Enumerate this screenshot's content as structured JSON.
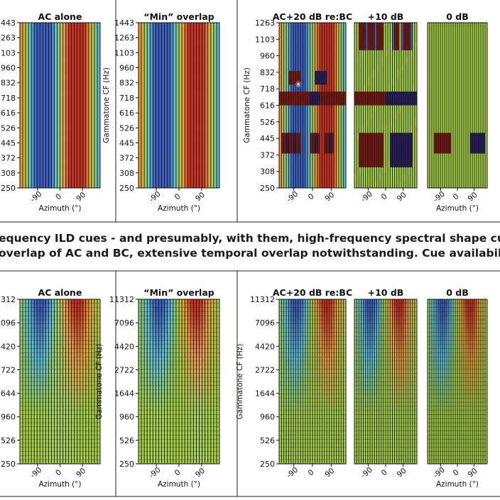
{
  "caption": {
    "line1": "equency ILD cues - and presumably, with them, high-frequency spectral shape cues - are",
    "line2": "overlap of AC and BC, extensive temporal overlap notwithstanding. Cue availability the"
  },
  "colors": {
    "blue": "#3f5fbf",
    "red": "#cc3322",
    "neutral": "#a8d44a",
    "darkRed": "#7a1a12",
    "darkBlue": "#2a1f5e"
  },
  "chart_data": [
    {
      "type": "heatmap",
      "row": "low-frequency",
      "ylabel": "Gammatone CF (Hz)",
      "xlabel": "Azimuth (°)",
      "x_ticks": [
        "-90",
        "0",
        "90"
      ],
      "y_ticks_full": [
        "1443",
        "1263",
        "1103",
        "960",
        "832",
        "718",
        "616",
        "526",
        "445",
        "372",
        "308",
        "250"
      ],
      "y_ticks_short": [
        "1263",
        "1103",
        "960",
        "832",
        "718",
        "616",
        "526",
        "445",
        "372",
        "308",
        "250"
      ],
      "panels": [
        {
          "title": "AC alone",
          "pattern": "ild_low"
        },
        {
          "title": "“Min” overlap",
          "pattern": "ild_low"
        },
        {
          "title": "AC+20 dB re:BC",
          "pattern": "ild_low_masked"
        },
        {
          "title": "+10 dB",
          "pattern": "masked_10"
        },
        {
          "title": "0 dB",
          "pattern": "masked_0"
        }
      ]
    },
    {
      "type": "heatmap",
      "row": "high-frequency",
      "ylabel": "Gammatone CF (Hz)",
      "xlabel": "Azimuth (°)",
      "x_ticks": [
        "-90",
        "0",
        "90"
      ],
      "y_ticks": [
        "11312",
        "7096",
        "4420",
        "2722",
        "1644",
        "960",
        "526",
        "250"
      ],
      "panels": [
        {
          "title": "AC alone",
          "pattern": "ild_high"
        },
        {
          "title": "“Min” overlap",
          "pattern": "ild_high"
        },
        {
          "title": "AC+20 dB re:BC",
          "pattern": "ild_high"
        },
        {
          "title": "+10 dB",
          "pattern": "ild_high"
        },
        {
          "title": "0 dB",
          "pattern": "ild_high"
        }
      ]
    }
  ]
}
